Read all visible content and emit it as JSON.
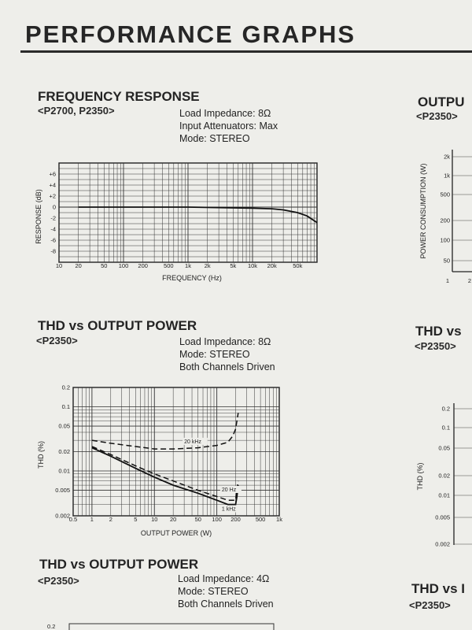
{
  "page": {
    "title": "PERFORMANCE GRAPHS"
  },
  "freq_response": {
    "title": "FREQUENCY RESPONSE",
    "models": "<P2700, P2350>",
    "conditions": [
      "Load Impedance: 8Ω",
      "Input Attenuators: Max",
      "Mode: STEREO"
    ]
  },
  "thd1": {
    "title": "THD vs OUTPUT POWER",
    "models": "<P2350>",
    "conditions": [
      "Load Impedance: 8Ω",
      "Mode: STEREO",
      "Both Channels Driven"
    ],
    "annotations": [
      "20 kHz",
      "20 Hz",
      "1 kHz"
    ]
  },
  "thd2": {
    "title": "THD vs OUTPUT POWER",
    "models": "<P2350>",
    "conditions": [
      "Load Impedance: 4Ω",
      "Mode: STEREO",
      "Both Channels Driven"
    ],
    "y_top_tick": "0.2"
  },
  "right_partial": {
    "output_title": "OUTPU",
    "output_model": "<P2350>",
    "power_ylabel": "POWER CONSUMPTION (W)",
    "power_yticks": [
      "2k",
      "1k",
      "500",
      "200",
      "100",
      "50"
    ],
    "power_xticks": [
      "1",
      "2"
    ],
    "thd_title": "THD vs",
    "thd_model": "<P2350>",
    "thd_ylabel": "THD (%)",
    "thd_yticks": [
      "0.2",
      "0.1",
      "0.05",
      "0.02",
      "0.01",
      "0.005",
      "0.002"
    ],
    "thd_bottom_title": "THD vs I",
    "thd_bottom_model": "<P2350>"
  },
  "chart_data": [
    {
      "type": "line",
      "title": "FREQUENCY RESPONSE",
      "xlabel": "FREQUENCY (Hz)",
      "ylabel": "RESPONSE (dB)",
      "x_scale": "log",
      "xlim": [
        10,
        100000
      ],
      "ylim": [
        -10,
        8
      ],
      "xticks": [
        "10",
        "20",
        "50",
        "100",
        "200",
        "500",
        "1k",
        "2k",
        "5k",
        "10k",
        "20k",
        "50k"
      ],
      "yticks": [
        "+6",
        "+4",
        "+2",
        "0",
        "-2",
        "-4",
        "-6",
        "-8"
      ],
      "grid": true,
      "series": [
        {
          "x": [
            20,
            100,
            1000,
            10000,
            20000,
            30000,
            50000,
            70000,
            100000
          ],
          "y": [
            0,
            0,
            0,
            -0.2,
            -0.3,
            -0.5,
            -1.0,
            -1.6,
            -2.8
          ]
        }
      ]
    },
    {
      "type": "line",
      "title": "THD vs OUTPUT POWER",
      "xlabel": "OUTPUT POWER (W)",
      "ylabel": "THD (%)",
      "x_scale": "log",
      "y_scale": "log",
      "xlim": [
        0.5,
        1000
      ],
      "ylim": [
        0.002,
        0.2
      ],
      "xticks": [
        "0.5",
        "1",
        "2",
        "5",
        "10",
        "20",
        "50",
        "100",
        "200",
        "500",
        "1k"
      ],
      "yticks": [
        "0.2",
        "0.1",
        "0.05",
        "0.02",
        "0.01",
        "0.005",
        "0.002"
      ],
      "grid": true,
      "series": [
        {
          "name": "20 kHz",
          "x": [
            1,
            2,
            5,
            10,
            20,
            50,
            100,
            150,
            180,
            200,
            220
          ],
          "y": [
            0.03,
            0.027,
            0.024,
            0.022,
            0.022,
            0.023,
            0.025,
            0.028,
            0.035,
            0.045,
            0.08
          ]
        },
        {
          "name": "20 Hz",
          "x": [
            1,
            2,
            5,
            10,
            20,
            50,
            100,
            150,
            200,
            210,
            220
          ],
          "y": [
            0.024,
            0.018,
            0.012,
            0.009,
            0.007,
            0.005,
            0.004,
            0.0035,
            0.0035,
            0.005,
            0.007
          ]
        },
        {
          "name": "1 kHz",
          "x": [
            1,
            2,
            5,
            10,
            20,
            50,
            100,
            150,
            200,
            210,
            220
          ],
          "y": [
            0.023,
            0.017,
            0.011,
            0.008,
            0.006,
            0.0045,
            0.0035,
            0.003,
            0.003,
            0.004,
            0.006
          ]
        }
      ]
    }
  ]
}
